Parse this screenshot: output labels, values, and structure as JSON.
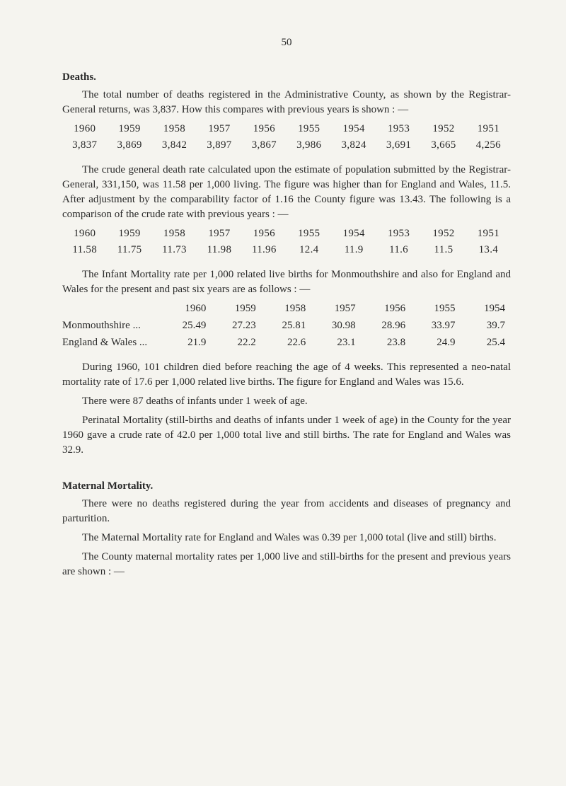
{
  "page_number": "50",
  "deaths": {
    "heading": "Deaths.",
    "intro": "The total number of deaths registered in the Administrative County, as shown by the Registrar-General returns, was 3,837. How this compares with previous years is shown : —",
    "table1": {
      "years": [
        "1960",
        "1959",
        "1958",
        "1957",
        "1956",
        "1955",
        "1954",
        "1953",
        "1952",
        "1951"
      ],
      "values": [
        "3,837",
        "3,869",
        "3,842",
        "3,897",
        "3,867",
        "3,986",
        "3,824",
        "3,691",
        "3,665",
        "4,256"
      ]
    },
    "crude_para": "The crude general death rate calculated upon the estimate of population submitted by the Registrar-General, 331,150, was 11.58 per 1,000 living. The figure was higher than for England and Wales, 11.5. After adjustment by the comparability factor of 1.16 the County figure was 13.43. The following is a comparison of the crude rate with previous years : —",
    "table2": {
      "years": [
        "1960",
        "1959",
        "1958",
        "1957",
        "1956",
        "1955",
        "1954",
        "1953",
        "1952",
        "1951"
      ],
      "values": [
        "11.58",
        "11.75",
        "11.73",
        "11.98",
        "11.96",
        "12.4",
        "11.9",
        "11.6",
        "11.5",
        "13.4"
      ]
    },
    "infant_para": "The Infant Mortality rate per 1,000 related live births for Monmouth­shire and also for England and Wales for the present and past six years are as follows : —",
    "table3": {
      "header": [
        "",
        "1960",
        "1959",
        "1958",
        "1957",
        "1956",
        "1955",
        "1954"
      ],
      "row1": [
        "Monmouthshire         ...",
        "25.49",
        "27.23",
        "25.81",
        "30.98",
        "28.96",
        "33.97",
        "39.7"
      ],
      "row2": [
        "England & Wales   ...",
        "21.9",
        "22.2",
        "22.6",
        "23.1",
        "23.8",
        "24.9",
        "25.4"
      ]
    },
    "during_para": "During 1960, 101 children died before reaching the age of 4 weeks. This represented a neo-natal mortality rate of 17.6 per 1,000 related live births. The figure for England and Wales was 15.6.",
    "there_were": "There were 87 deaths of infants under 1 week of age.",
    "perinatal": "Perinatal Mortality (still-births and deaths of infants under 1 week of age) in the County for the year 1960 gave a crude rate of 42.0 per 1,000 total live and still births. The rate for England and Wales was 32.9."
  },
  "maternal": {
    "heading": "Maternal Mortality.",
    "para1": "There were no deaths registered during the year from accidents and dis­eases of pregnancy and parturition.",
    "para2": "The Maternal Mortality rate for England and Wales was 0.39 per 1,000 total (live and still) births.",
    "para3": "The County maternal mortality rates per 1,000 live and still-births for the present and previous years are shown : —"
  }
}
